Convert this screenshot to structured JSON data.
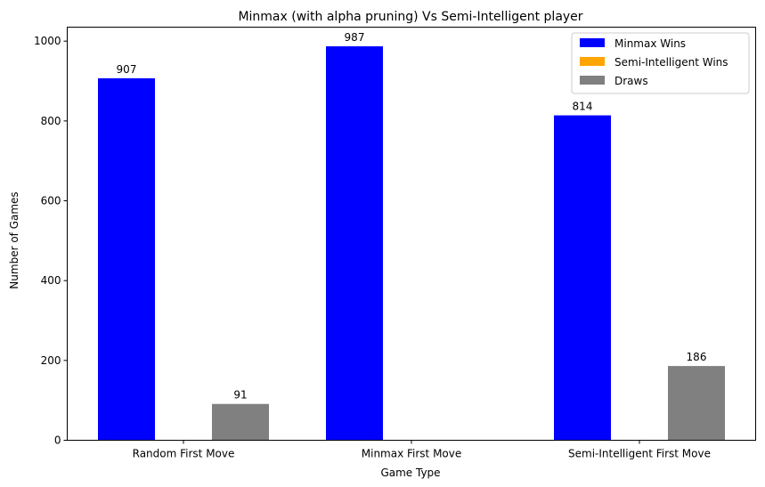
{
  "chart_data": {
    "type": "bar",
    "title": "Minmax (with alpha pruning) Vs Semi-Intelligent player",
    "xlabel": "Game Type",
    "ylabel": "Number of Games",
    "categories": [
      "Random First Move",
      "Minmax First Move",
      "Semi-Intelligent First Move"
    ],
    "series": [
      {
        "name": "Minmax Wins",
        "color": "#0000ff",
        "values": [
          907,
          987,
          814
        ]
      },
      {
        "name": "Semi-Intelligent Wins",
        "color": "#ffa500",
        "values": [
          0,
          0,
          0
        ]
      },
      {
        "name": "Draws",
        "color": "#808080",
        "values": [
          91,
          0,
          186
        ]
      }
    ],
    "data_labels": [
      [
        "907",
        "987",
        "814"
      ],
      [
        "",
        "",
        ""
      ],
      [
        "91",
        "",
        "186"
      ]
    ],
    "ylim": [
      0,
      1035
    ],
    "yticks": [
      0,
      200,
      400,
      600,
      800,
      1000
    ],
    "grid": false,
    "legend_position": "upper right"
  }
}
